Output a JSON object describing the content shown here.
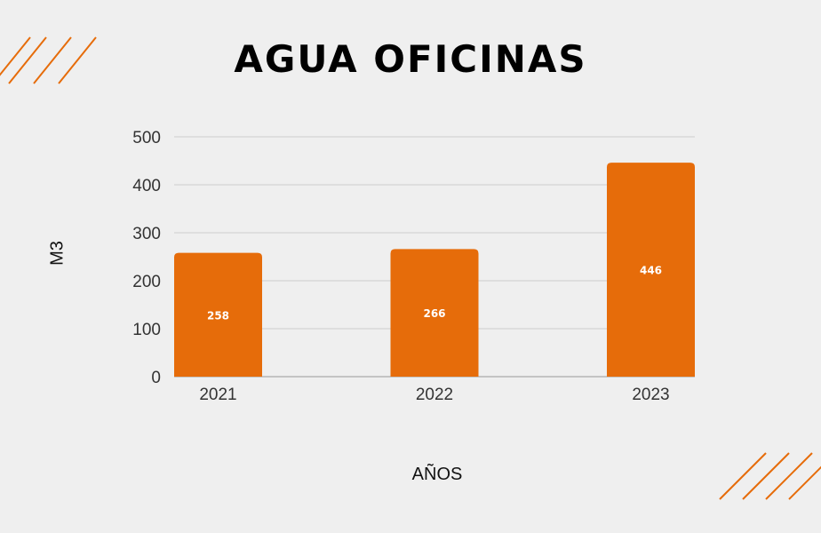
{
  "colors": {
    "background": "#efefef",
    "bar": "#e66c0a",
    "accent": "#e66c0a",
    "grid": "#cccccc",
    "text": "#333333"
  },
  "chart_data": {
    "type": "bar",
    "title": "AGUA OFICINAS",
    "xlabel": "AÑOS",
    "ylabel": "M3",
    "categories": [
      "2021",
      "2022",
      "2023"
    ],
    "values": [
      258,
      266,
      446
    ],
    "ylim": [
      0,
      500
    ],
    "yticks": [
      0,
      100,
      200,
      300,
      400,
      500
    ],
    "grid": true,
    "legend": "none"
  }
}
